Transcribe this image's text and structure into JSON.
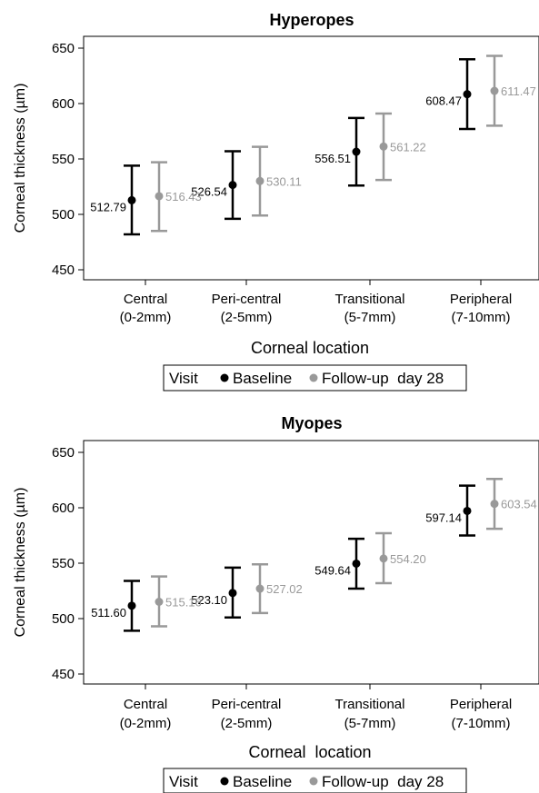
{
  "chart_data": [
    {
      "type": "scatter",
      "title": "Hyperopes",
      "ylabel": "Corneal thickness (µm)",
      "xlabel": "Corneal location",
      "ylim": [
        440,
        655
      ],
      "yticks": [
        450,
        500,
        550,
        600,
        650
      ],
      "categories": [
        {
          "line1": "Central",
          "line2": "(0-2mm)"
        },
        {
          "line1": "Peri-central",
          "line2": "(2-5mm)"
        },
        {
          "line1": "Transitional",
          "line2": "(5-7mm)"
        },
        {
          "line1": "Peripheral",
          "line2": "(7-10mm)"
        }
      ],
      "series": [
        {
          "name": "Baseline",
          "color": "#000000",
          "values": [
            512.79,
            526.54,
            556.51,
            608.47
          ],
          "labels": [
            "512.79",
            "526.54",
            "556.51",
            "608.47"
          ],
          "lower": [
            482,
            496,
            526,
            577
          ],
          "upper": [
            544,
            557,
            587,
            640
          ]
        },
        {
          "name": "Follow-up  day 28",
          "color": "#999999",
          "values": [
            516.43,
            530.11,
            561.22,
            611.47
          ],
          "labels": [
            "516.43",
            "530.11",
            "561.22",
            "611.47"
          ],
          "lower": [
            485,
            499,
            531,
            580
          ],
          "upper": [
            547,
            561,
            591,
            643
          ]
        }
      ],
      "legend": {
        "title": "Visit",
        "position": "bottom"
      },
      "grid": false
    },
    {
      "type": "scatter",
      "title": "Myopes",
      "ylabel": "Corneal thickness (µm)",
      "xlabel": "Corneal  location",
      "ylim": [
        440,
        655
      ],
      "yticks": [
        450,
        500,
        550,
        600,
        650
      ],
      "categories": [
        {
          "line1": "Central",
          "line2": "(0-2mm)"
        },
        {
          "line1": "Peri-central",
          "line2": "(2-5mm)"
        },
        {
          "line1": "Transitional",
          "line2": "(5-7mm)"
        },
        {
          "line1": "Peripheral",
          "line2": "(7-10mm)"
        }
      ],
      "series": [
        {
          "name": "Baseline",
          "color": "#000000",
          "values": [
            511.6,
            523.1,
            549.64,
            597.14
          ],
          "labels": [
            "511.60",
            "523.10",
            "549.64",
            "597.14"
          ],
          "lower": [
            489,
            501,
            527,
            575
          ],
          "upper": [
            534,
            546,
            572,
            620
          ]
        },
        {
          "name": "Follow-up  day 28",
          "color": "#999999",
          "values": [
            515.16,
            527.02,
            554.2,
            603.54
          ],
          "labels": [
            "515.16",
            "527.02",
            "554.20",
            "603.54"
          ],
          "lower": [
            493,
            505,
            532,
            581
          ],
          "upper": [
            538,
            549,
            577,
            626
          ]
        }
      ],
      "legend": {
        "title": "Visit",
        "position": "bottom"
      },
      "grid": false
    }
  ]
}
